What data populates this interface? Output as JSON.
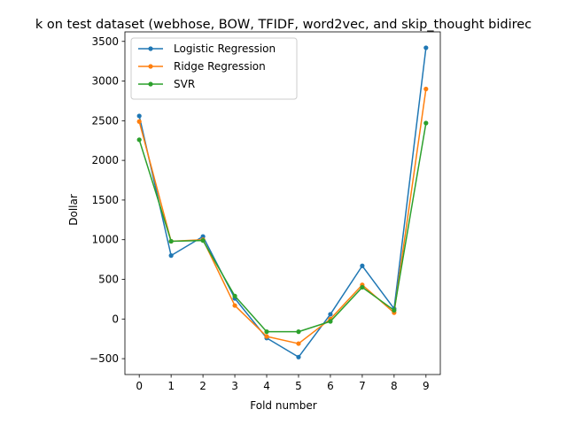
{
  "chart_data": {
    "type": "line",
    "title": "k on test dataset (webhose, BOW, TFIDF, word2vec, and skip_thought bidirec",
    "xlabel": "Fold number",
    "ylabel": "Dollar",
    "x": [
      0,
      1,
      2,
      3,
      4,
      5,
      6,
      7,
      8,
      9
    ],
    "xticks": [
      "0",
      "1",
      "2",
      "3",
      "4",
      "5",
      "6",
      "7",
      "8",
      "9"
    ],
    "yticks": [
      "−500",
      "0",
      "500",
      "1000",
      "1500",
      "2000",
      "2500",
      "3000",
      "3500"
    ],
    "xlim": [
      -0.45,
      9.45
    ],
    "ylim": [
      -700,
      3620
    ],
    "grid": false,
    "legend_position": "top-left",
    "series": [
      {
        "name": "Logistic Regression",
        "color": "#1f77b4",
        "values": [
          2560,
          800,
          1040,
          260,
          -240,
          -480,
          60,
          670,
          130,
          3420
        ]
      },
      {
        "name": "Ridge Regression",
        "color": "#ff7f0e",
        "values": [
          2490,
          980,
          1000,
          170,
          -220,
          -310,
          0,
          430,
          80,
          2900
        ]
      },
      {
        "name": "SVR",
        "color": "#2ca02c",
        "values": [
          2260,
          980,
          990,
          290,
          -160,
          -160,
          -30,
          400,
          110,
          2470
        ]
      }
    ]
  }
}
